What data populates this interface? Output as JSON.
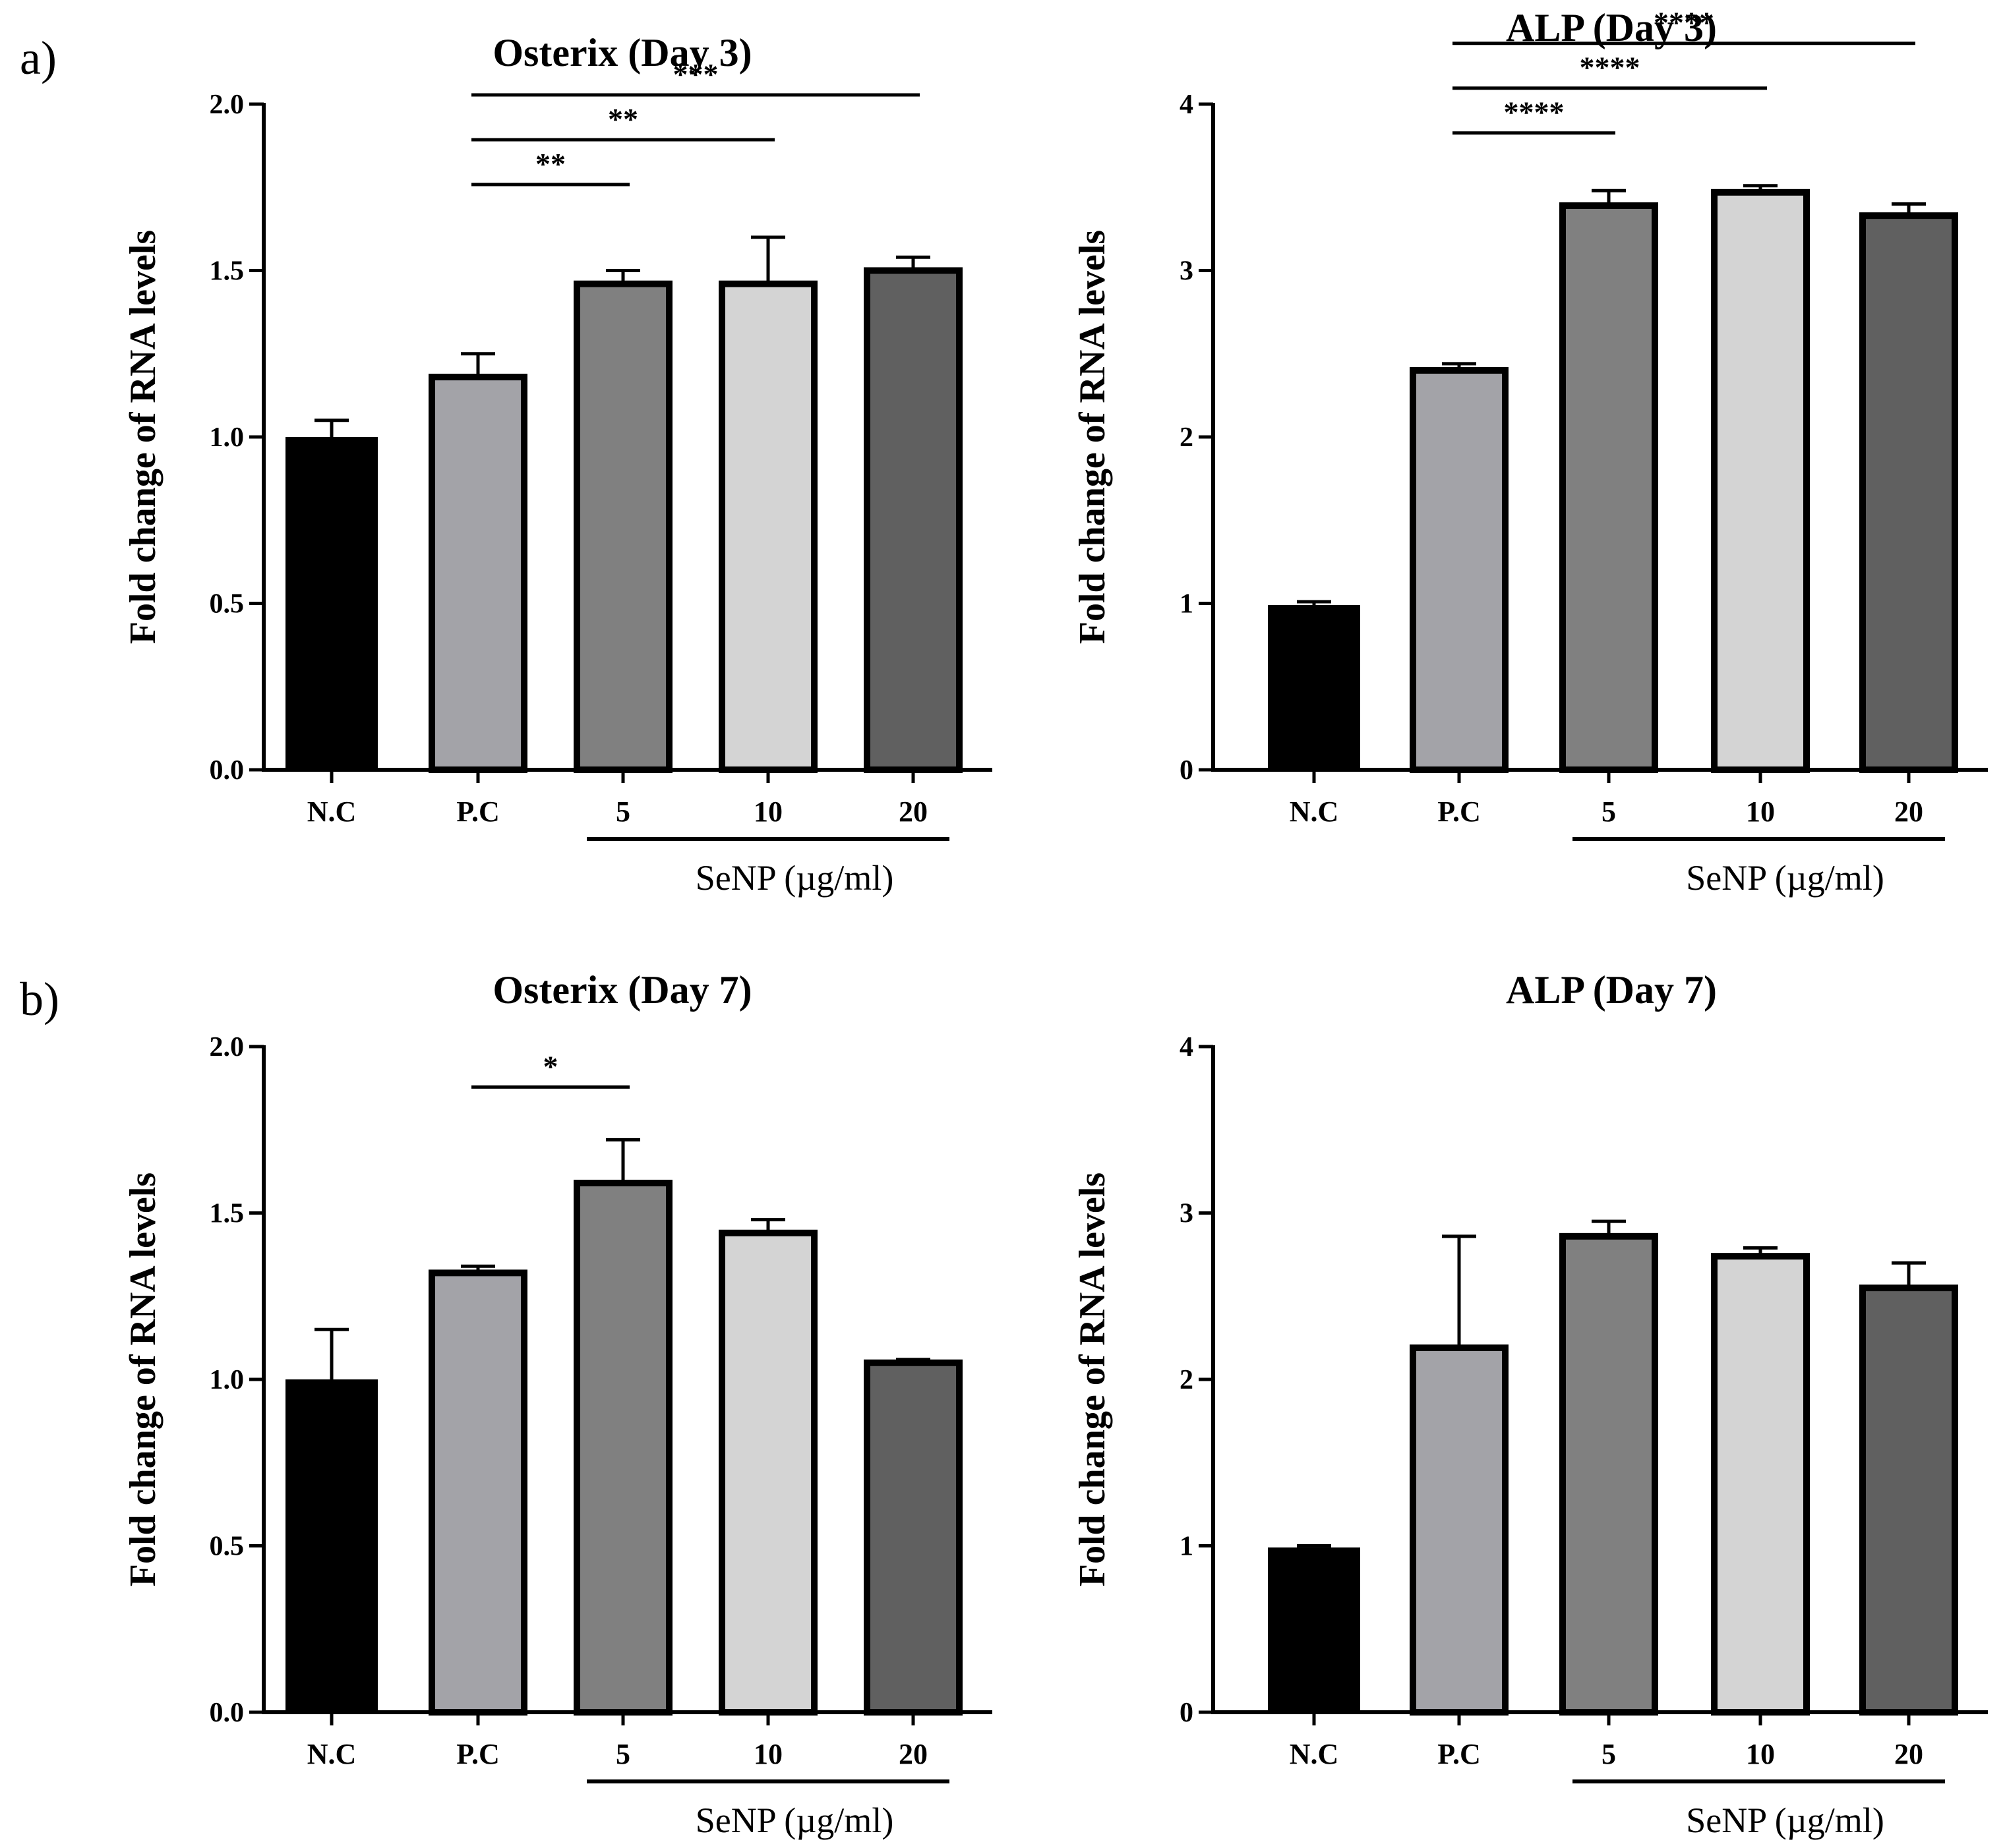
{
  "panels": [
    {
      "label": "a)",
      "charts": [
        0,
        1
      ]
    },
    {
      "label": "b)",
      "charts": [
        2,
        3
      ]
    }
  ],
  "chart_data": [
    {
      "type": "bar",
      "title": "Osterix (Day 3)",
      "ylabel": "Fold change of RNA levels",
      "xlabel": "",
      "categories": [
        "N.C",
        "P.C",
        "5",
        "10",
        "20"
      ],
      "values": [
        1.0,
        1.18,
        1.46,
        1.46,
        1.5
      ],
      "errors": [
        0.05,
        0.07,
        0.04,
        0.14,
        0.04
      ],
      "colors": [
        "#000000",
        "#a3a3a8",
        "#808080",
        "#d4d4d4",
        "#606060"
      ],
      "ylim": [
        0,
        2.0
      ],
      "yticks": [
        "0.0",
        "0.5",
        "1.0",
        "1.5",
        "2.0"
      ],
      "group_label": "SeNP (µg/ml)",
      "group_span": [
        2,
        4
      ],
      "significance": [
        {
          "from": 1,
          "to": 2,
          "label": "**"
        },
        {
          "from": 1,
          "to": 3,
          "label": "**"
        },
        {
          "from": 1,
          "to": 4,
          "label": "***"
        }
      ]
    },
    {
      "type": "bar",
      "title": "ALP (Day 3)",
      "ylabel": "Fold change of RNA levels",
      "xlabel": "",
      "categories": [
        "N.C",
        "P.C",
        "5",
        "10",
        "20"
      ],
      "values": [
        0.99,
        2.4,
        3.39,
        3.47,
        3.33
      ],
      "errors": [
        0.02,
        0.04,
        0.09,
        0.04,
        0.07
      ],
      "colors": [
        "#000000",
        "#a3a3a8",
        "#808080",
        "#d4d4d4",
        "#606060"
      ],
      "ylim": [
        0,
        4
      ],
      "yticks": [
        "0",
        "1",
        "2",
        "3",
        "4"
      ],
      "group_label": "SeNP (µg/ml)",
      "group_span": [
        2,
        4
      ],
      "significance": [
        {
          "from": 1,
          "to": 2,
          "label": "****"
        },
        {
          "from": 1,
          "to": 3,
          "label": "****"
        },
        {
          "from": 1,
          "to": 4,
          "label": "****"
        }
      ]
    },
    {
      "type": "bar",
      "title": "Osterix (Day 7)",
      "ylabel": "Fold change of RNA levels",
      "xlabel": "",
      "categories": [
        "N.C",
        "P.C",
        "5",
        "10",
        "20"
      ],
      "values": [
        1.0,
        1.32,
        1.59,
        1.44,
        1.05
      ],
      "errors": [
        0.15,
        0.02,
        0.13,
        0.04,
        0.01
      ],
      "colors": [
        "#000000",
        "#a3a3a8",
        "#808080",
        "#d4d4d4",
        "#606060"
      ],
      "ylim": [
        0,
        2.0
      ],
      "yticks": [
        "0.0",
        "0.5",
        "1.0",
        "1.5",
        "2.0"
      ],
      "group_label": "SeNP (µg/ml)",
      "group_span": [
        2,
        4
      ],
      "significance": [
        {
          "from": 1,
          "to": 2,
          "label": "*"
        }
      ]
    },
    {
      "type": "bar",
      "title": "ALP (Day 7)",
      "ylabel": "Fold change of RNA levels",
      "xlabel": "",
      "categories": [
        "N.C",
        "P.C",
        "5",
        "10",
        "20"
      ],
      "values": [
        0.99,
        2.19,
        2.86,
        2.74,
        2.55
      ],
      "errors": [
        0.01,
        0.67,
        0.09,
        0.05,
        0.15
      ],
      "colors": [
        "#000000",
        "#a3a3a8",
        "#808080",
        "#d4d4d4",
        "#606060"
      ],
      "ylim": [
        0,
        4
      ],
      "yticks": [
        "0",
        "1",
        "2",
        "3",
        "4"
      ],
      "group_label": "SeNP (µg/ml)",
      "group_span": [
        2,
        4
      ],
      "significance": []
    }
  ]
}
